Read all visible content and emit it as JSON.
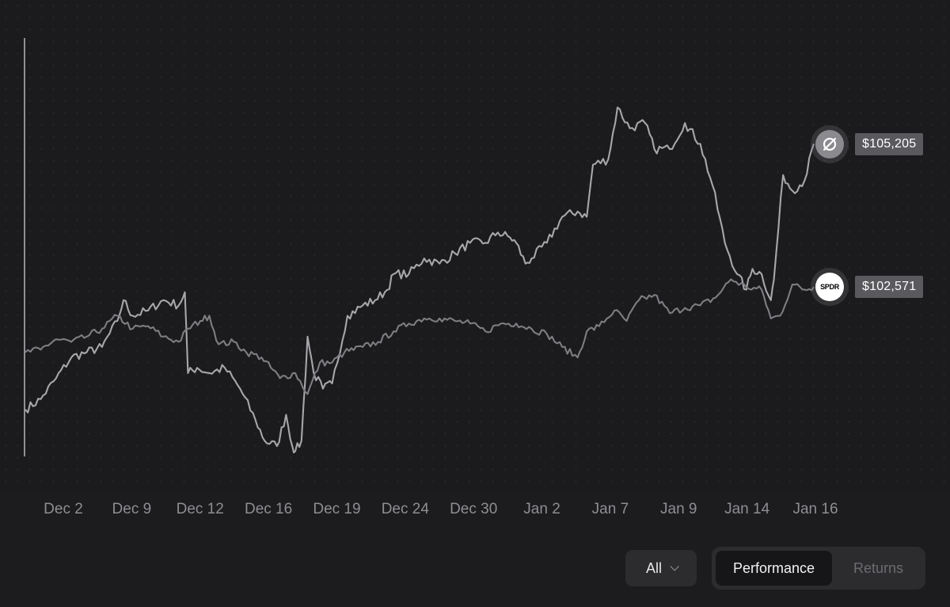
{
  "chart_data": {
    "type": "line",
    "title": "",
    "xlabel": "",
    "ylabel": "",
    "x_ticks": [
      "Dec 2",
      "Dec 9",
      "Dec 12",
      "Dec 16",
      "Dec 19",
      "Dec 24",
      "Dec 30",
      "Jan 2",
      "Jan 7",
      "Jan 9",
      "Jan 14",
      "Jan 16"
    ],
    "ylim": [
      99000,
      107000
    ],
    "grid": "dotted background",
    "series": [
      {
        "name": "",
        "icon": "crossed-circle-logo",
        "color": "#a7a7ab",
        "end_label": "$105,205",
        "points": [
          [
            0,
            99900
          ],
          [
            0.5,
            100100
          ],
          [
            1,
            100500
          ],
          [
            1.5,
            100900
          ],
          [
            2,
            101000
          ],
          [
            2.5,
            101100
          ],
          [
            3,
            101600
          ],
          [
            3.2,
            102000
          ],
          [
            3.5,
            101700
          ],
          [
            4,
            101800
          ],
          [
            4.5,
            102000
          ],
          [
            5,
            101900
          ],
          [
            5.2,
            102150
          ],
          [
            5.3,
            100600
          ],
          [
            5.6,
            100700
          ],
          [
            6,
            100600
          ],
          [
            6.5,
            100700
          ],
          [
            7,
            100300
          ],
          [
            7.5,
            99700
          ],
          [
            7.8,
            99300
          ],
          [
            8.2,
            99200
          ],
          [
            8.5,
            99800
          ],
          [
            8.7,
            99200
          ],
          [
            8.8,
            99100
          ],
          [
            9,
            99300
          ],
          [
            9.2,
            101300
          ],
          [
            9.4,
            100600
          ],
          [
            9.7,
            100300
          ],
          [
            10,
            100400
          ],
          [
            10.5,
            101700
          ],
          [
            11,
            101900
          ],
          [
            11.4,
            102000
          ],
          [
            11.8,
            102200
          ],
          [
            12,
            102500
          ],
          [
            12.5,
            102500
          ],
          [
            13,
            102800
          ],
          [
            13.5,
            102700
          ],
          [
            14,
            102900
          ],
          [
            14.5,
            103100
          ],
          [
            15,
            103100
          ],
          [
            15.4,
            103300
          ],
          [
            15.8,
            103200
          ],
          [
            16,
            103100
          ],
          [
            16.3,
            102700
          ],
          [
            16.5,
            102800
          ],
          [
            17,
            103100
          ],
          [
            17.5,
            103600
          ],
          [
            18,
            103700
          ],
          [
            18.3,
            103600
          ],
          [
            18.5,
            104600
          ],
          [
            19,
            104700
          ],
          [
            19.3,
            105700
          ],
          [
            19.7,
            105300
          ],
          [
            20.2,
            105400
          ],
          [
            20.5,
            104900
          ],
          [
            21,
            104900
          ],
          [
            21.5,
            105400
          ],
          [
            22,
            105000
          ],
          [
            22.4,
            104200
          ],
          [
            22.8,
            103100
          ],
          [
            23.2,
            102500
          ],
          [
            23.5,
            102200
          ],
          [
            23.7,
            102600
          ],
          [
            24,
            102500
          ],
          [
            24.3,
            102000
          ],
          [
            24.4,
            102400
          ],
          [
            24.7,
            104400
          ],
          [
            25,
            104100
          ],
          [
            25.4,
            104300
          ],
          [
            25.7,
            105000
          ]
        ]
      },
      {
        "name": "",
        "icon": "spdr-logo",
        "color": "#7d7d82",
        "end_label": "$102,571",
        "points": [
          [
            0,
            101000
          ],
          [
            0.5,
            101050
          ],
          [
            1,
            101250
          ],
          [
            1.5,
            101200
          ],
          [
            2,
            101300
          ],
          [
            2.5,
            101450
          ],
          [
            3,
            101700
          ],
          [
            3.5,
            101450
          ],
          [
            4,
            101500
          ],
          [
            4.5,
            101300
          ],
          [
            5,
            101200
          ],
          [
            5.3,
            101450
          ],
          [
            5.7,
            101600
          ],
          [
            6,
            101700
          ],
          [
            6.3,
            101150
          ],
          [
            6.8,
            101200
          ],
          [
            7.2,
            101000
          ],
          [
            7.7,
            100900
          ],
          [
            8.3,
            100500
          ],
          [
            8.8,
            100600
          ],
          [
            9.2,
            100200
          ],
          [
            9.6,
            100800
          ],
          [
            10,
            100800
          ],
          [
            10.4,
            101000
          ],
          [
            11,
            101100
          ],
          [
            11.5,
            101200
          ],
          [
            12,
            101400
          ],
          [
            12.5,
            101550
          ],
          [
            13,
            101650
          ],
          [
            13.5,
            101650
          ],
          [
            14,
            101600
          ],
          [
            14.5,
            101550
          ],
          [
            15,
            101400
          ],
          [
            15.5,
            101550
          ],
          [
            16,
            101550
          ],
          [
            16.5,
            101450
          ],
          [
            17,
            101350
          ],
          [
            17.5,
            101100
          ],
          [
            18,
            100900
          ],
          [
            18.3,
            101400
          ],
          [
            18.7,
            101500
          ],
          [
            19.2,
            101800
          ],
          [
            19.6,
            101600
          ],
          [
            20,
            102000
          ],
          [
            20.5,
            102100
          ],
          [
            21,
            101750
          ],
          [
            21.5,
            101850
          ],
          [
            22,
            101900
          ],
          [
            22.5,
            102050
          ],
          [
            23,
            102400
          ],
          [
            23.5,
            102250
          ],
          [
            24,
            102200
          ],
          [
            24.3,
            101650
          ],
          [
            24.6,
            101700
          ],
          [
            25,
            102300
          ],
          [
            25.4,
            102200
          ],
          [
            25.7,
            102250
          ]
        ]
      }
    ]
  },
  "controls": {
    "range_selected": "All",
    "toggle": [
      {
        "label": "Performance",
        "active": true
      },
      {
        "label": "Returns",
        "active": false
      }
    ]
  }
}
